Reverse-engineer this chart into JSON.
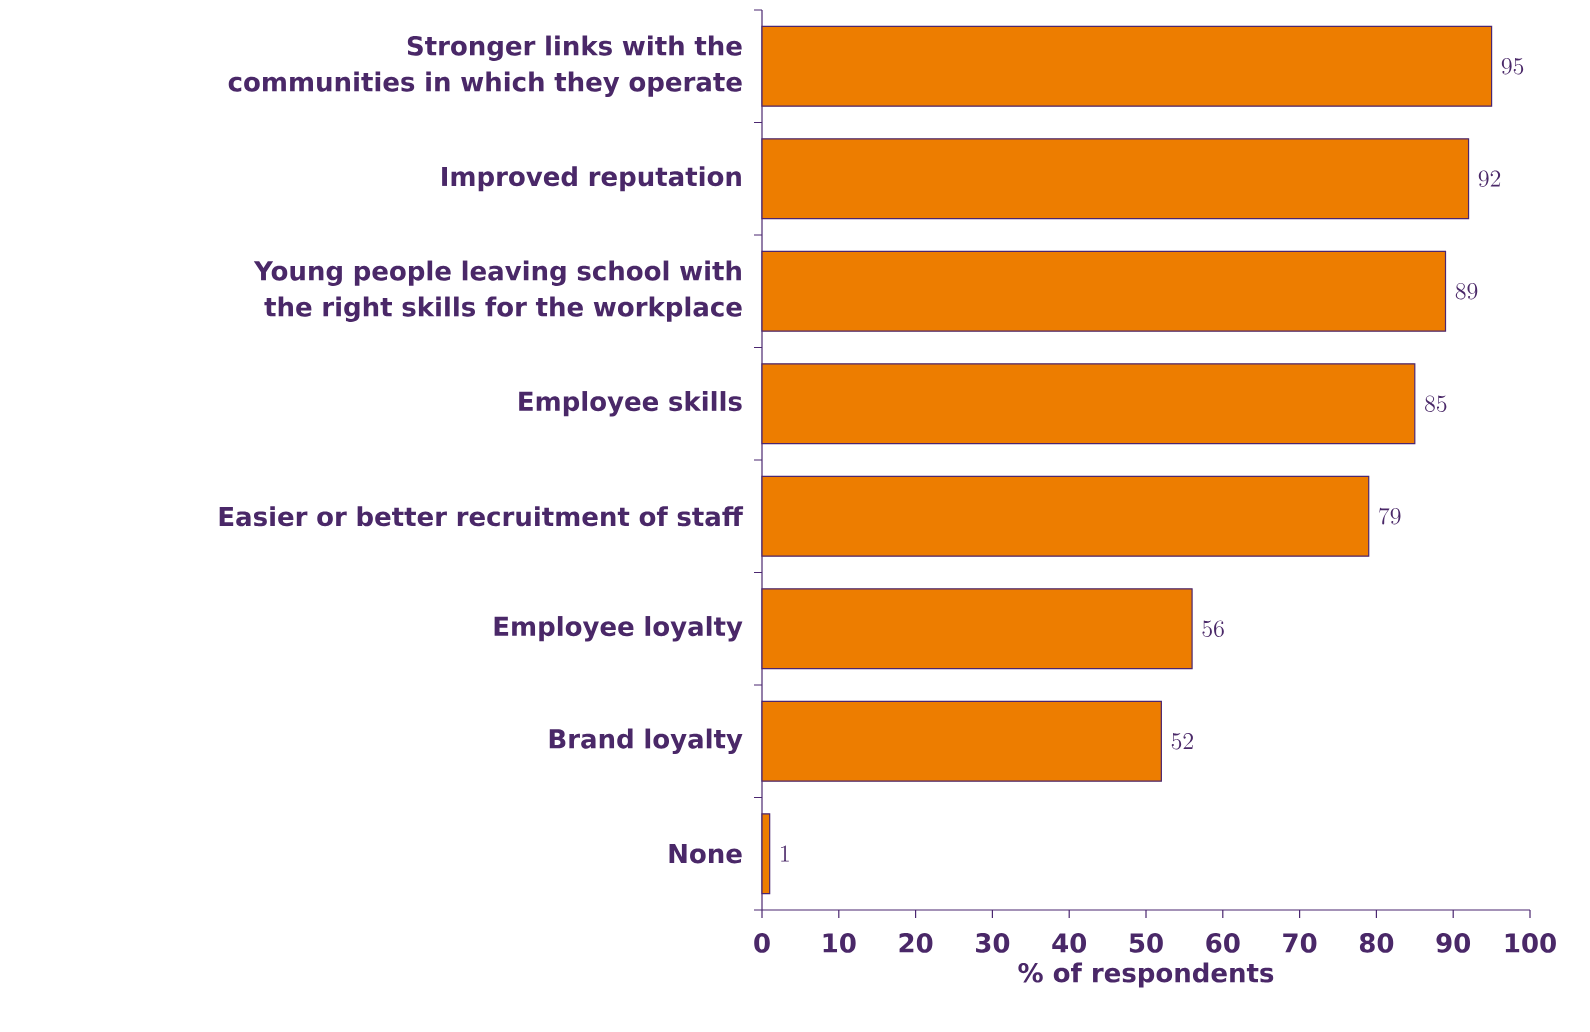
{
  "chart_data": {
    "type": "bar",
    "orientation": "horizontal",
    "categories": [
      "Stronger links with the communities in which they operate",
      "Improved reputation",
      "Young people leaving school with the right skills for the workplace",
      "Employee skills",
      "Easier or better recruitment of staff",
      "Employee loyalty",
      "Brand loyalty",
      "None"
    ],
    "values": [
      95,
      92,
      89,
      85,
      79,
      56,
      52,
      1
    ],
    "color": "#ed7d00",
    "xlabel": "% of respondents",
    "xlim": [
      0,
      100
    ],
    "xticks": [
      0,
      10,
      20,
      30,
      40,
      50,
      60,
      70,
      80,
      90,
      100
    ],
    "data_labels": true
  }
}
